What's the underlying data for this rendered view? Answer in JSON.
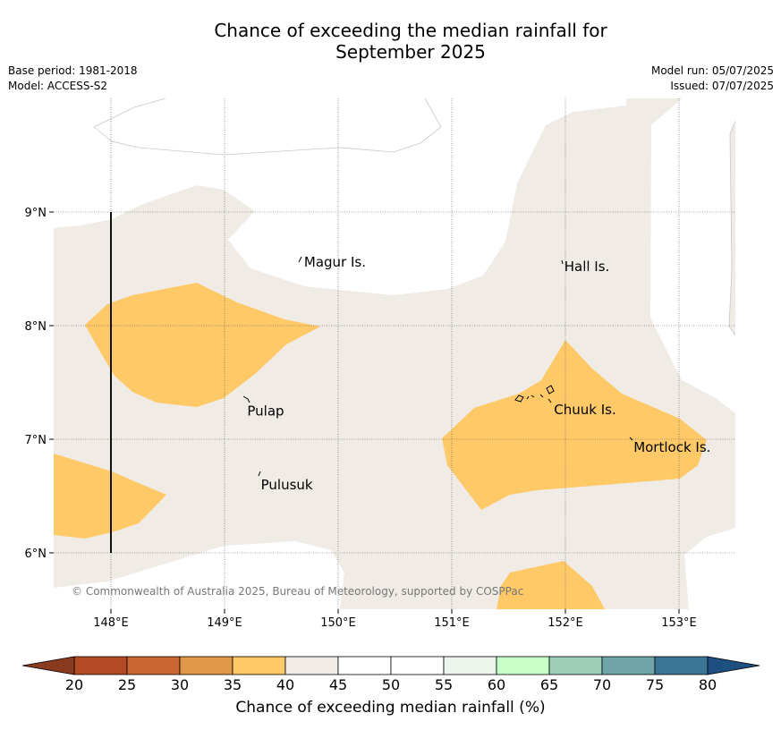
{
  "title_line1": "Chance of exceeding the median rainfall for",
  "title_line2": "September 2025",
  "meta_left": [
    "Base period: 1981-2018",
    "Model: ACCESS-S2"
  ],
  "meta_right": [
    "Model run: 05/07/2025",
    "Issued: 07/07/2025"
  ],
  "copyright": "© Commonwealth of Australia 2025, Bureau of Meteorology, supported by COSPPac",
  "map": {
    "lon_range": [
      147.5,
      153.5
    ],
    "lat_range": [
      5.5,
      10.0
    ],
    "lon_ticks": [
      "148°E",
      "149°E",
      "150°E",
      "151°E",
      "152°E",
      "153°E"
    ],
    "lon_tick_values": [
      148,
      149,
      150,
      151,
      152,
      153
    ],
    "lat_ticks": [
      "6°N",
      "7°N",
      "8°N",
      "9°N"
    ],
    "lat_tick_values": [
      6,
      7,
      8,
      9
    ],
    "grid": true,
    "places": [
      {
        "name": "Magur Is.",
        "lon": 149.7,
        "lat": 8.56
      },
      {
        "name": "Hall Is.",
        "lon": 151.99,
        "lat": 8.52
      },
      {
        "name": "Pulap",
        "lon": 149.2,
        "lat": 7.25
      },
      {
        "name": "Chuuk Is.",
        "lon": 151.9,
        "lat": 7.26
      },
      {
        "name": "Mortlock Is.",
        "lon": 152.6,
        "lat": 6.93
      },
      {
        "name": "Pulusuk",
        "lon": 149.32,
        "lat": 6.6
      }
    ]
  },
  "colorbar": {
    "labels": [
      "20",
      "25",
      "30",
      "35",
      "40",
      "45",
      "50",
      "55",
      "60",
      "65",
      "70",
      "75",
      "80"
    ],
    "colors": [
      "#b34a25",
      "#cc6633",
      "#e09748",
      "#fec966",
      "#f0ebe5",
      "#ffffff",
      "#ffffff",
      "#edf4ec",
      "#c8ffc8",
      "#9ecfb8",
      "#6fa4a8",
      "#3b7495"
    ],
    "under_color": "#8a3a1e",
    "over_color": "#1d5080",
    "title": "Chance of exceeding median rainfall (%)"
  },
  "colors": {
    "band_35_40": "#fec966",
    "band_40_45": "#f0ebe5"
  }
}
